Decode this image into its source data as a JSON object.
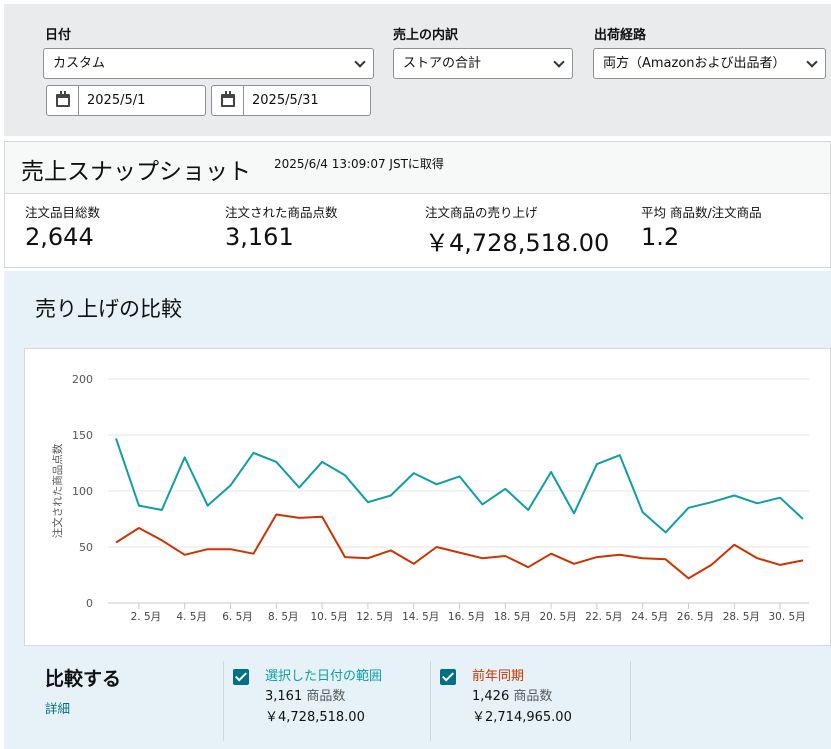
{
  "filters": {
    "date_label": "日付",
    "date_value": "カスタム",
    "start_date": "2025/5/1",
    "end_date": "2025/5/31",
    "breakdown_label": "売上の内訳",
    "breakdown_value": "ストアの合計",
    "channel_label": "出荷経路",
    "channel_value": "両方（Amazonおよび出品者）"
  },
  "snapshot": {
    "title": "売上スナップショット",
    "timestamp": "2025/6/4 13:09:07 JSTに取得",
    "metrics": [
      {
        "label": "注文品目総数",
        "value": "2,644"
      },
      {
        "label": "注文された商品点数",
        "value": "3,161"
      },
      {
        "label": "注文商品の売り上げ",
        "value": "￥4,728,518.00"
      },
      {
        "label": "平均 商品数/注文商品",
        "value": "1.2"
      }
    ]
  },
  "compare": {
    "title": "売り上げの比較",
    "compare_label": "比較する",
    "detail_link": "詳細",
    "legend": [
      {
        "name": "選択した日付の範囲",
        "count": "3,161",
        "unit": "商品数",
        "amount": "￥4,728,518.00",
        "color": "#0f9ea8"
      },
      {
        "name": "前年同期",
        "count": "1,426",
        "unit": "商品数",
        "amount": "￥2,714,965.00",
        "color": "#cc3300"
      }
    ]
  },
  "chart_data": {
    "type": "line",
    "ylabel": "注文された商品点数",
    "ylim": [
      0,
      200
    ],
    "yticks": [
      0,
      50,
      100,
      150,
      200
    ],
    "x": [
      1,
      2,
      3,
      4,
      5,
      6,
      7,
      8,
      9,
      10,
      11,
      12,
      13,
      14,
      15,
      16,
      17,
      18,
      19,
      20,
      21,
      22,
      23,
      24,
      25,
      26,
      27,
      28,
      29,
      30,
      31
    ],
    "xtick_labels": [
      "2. 5月",
      "4. 5月",
      "6. 5月",
      "8. 5月",
      "10. 5月",
      "12. 5月",
      "14. 5月",
      "16. 5月",
      "18. 5月",
      "20. 5月",
      "22. 5月",
      "24. 5月",
      "26. 5月",
      "28. 5月",
      "30. 5月"
    ],
    "xtick_days": [
      2,
      4,
      6,
      8,
      10,
      12,
      14,
      16,
      18,
      20,
      22,
      24,
      26,
      28,
      30
    ],
    "series": [
      {
        "name": "選択した日付の範囲",
        "color": "#0f9ea8",
        "values": [
          147,
          87,
          83,
          130,
          87,
          105,
          134,
          126,
          103,
          126,
          114,
          90,
          96,
          116,
          106,
          113,
          88,
          102,
          83,
          117,
          80,
          124,
          132,
          81,
          63,
          85,
          90,
          96,
          89,
          94,
          75
        ]
      },
      {
        "name": "前年同期",
        "color": "#cc3300",
        "values": [
          54,
          67,
          56,
          43,
          48,
          48,
          44,
          79,
          76,
          77,
          41,
          40,
          47,
          35,
          50,
          45,
          40,
          42,
          32,
          44,
          35,
          41,
          43,
          40,
          39,
          22,
          34,
          52,
          40,
          34,
          38
        ]
      }
    ]
  }
}
